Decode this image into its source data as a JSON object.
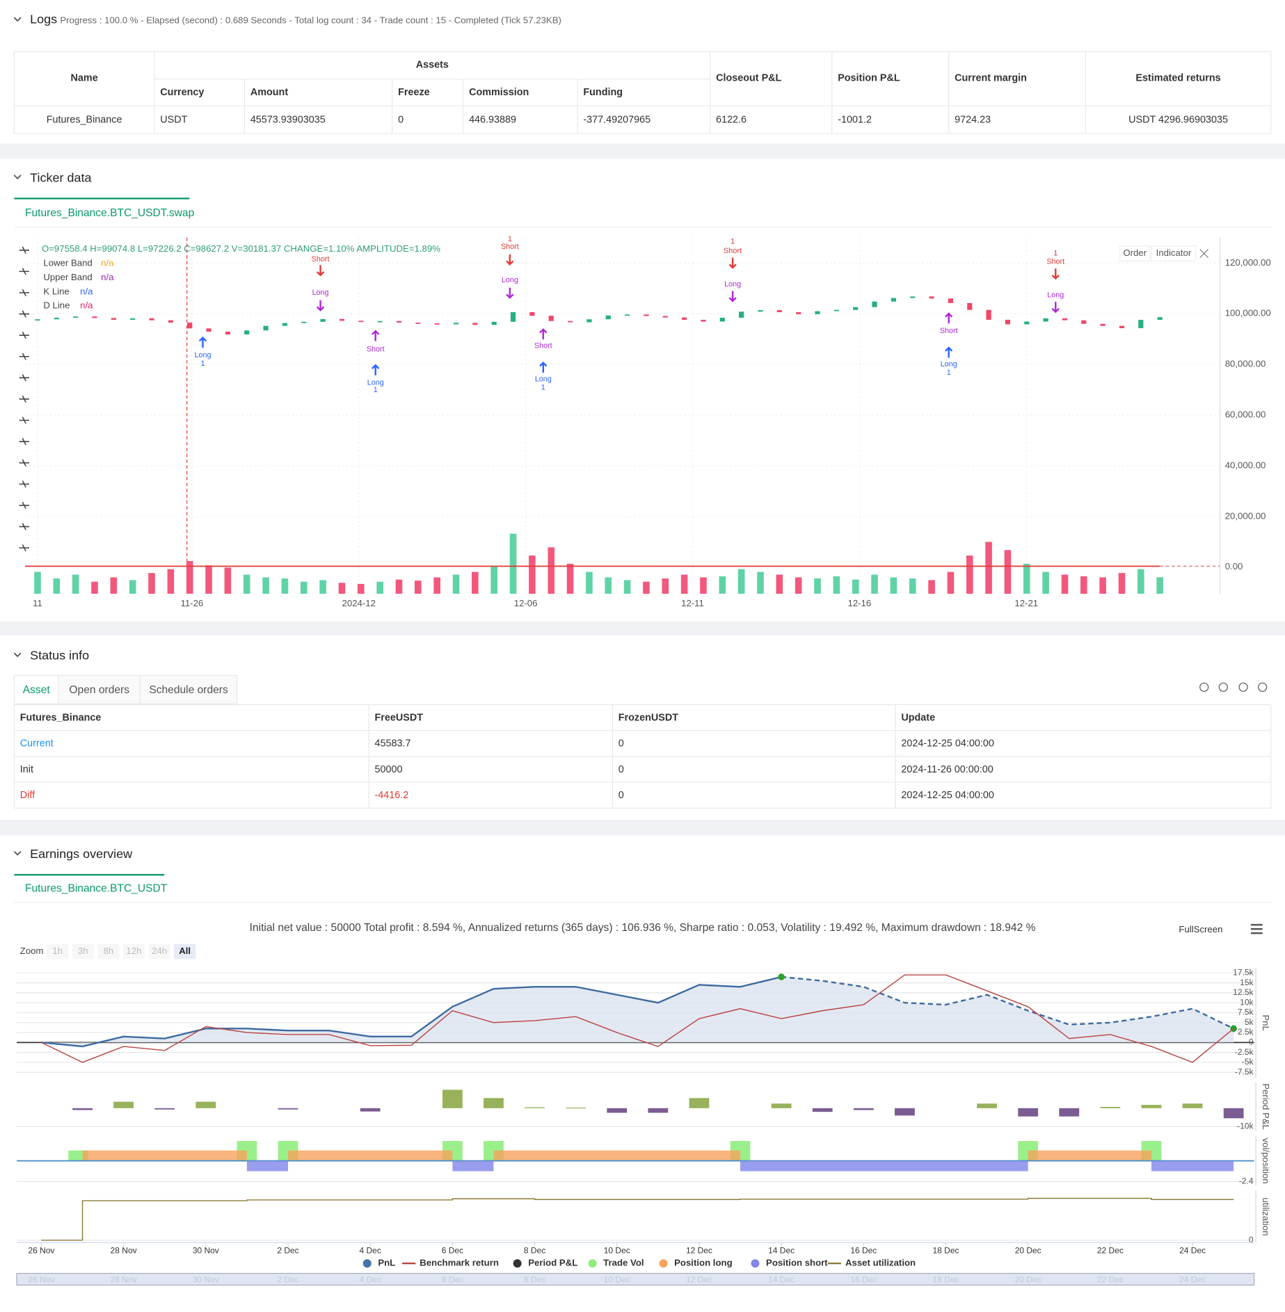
{
  "logs": {
    "title": "Logs",
    "status": "Progress : 100.0 % - Elapsed (second) : 0.689  Seconds - Total log count : 34 - Trade count : 15 - Completed (Tick 57.23KB)",
    "table": {
      "group_header": "Assets",
      "headers": [
        "Name",
        "Currency",
        "Amount",
        "Freeze",
        "Commission",
        "Funding",
        "Closeout P&L",
        "Position P&L",
        "Current margin",
        "Estimated returns"
      ],
      "rows": [
        [
          "Futures_Binance",
          "USDT",
          "45573.93903035",
          "0",
          "446.93889",
          "-377.49207965",
          "6122.6",
          "-1001.2",
          "9724.23",
          "USDT 4296.96903035"
        ]
      ]
    }
  },
  "ticker": {
    "title": "Ticker data",
    "tab": "Futures_Binance.BTC_USDT.swap",
    "ohlc": "O=97558.4 H=99074.8 L=97226.2 C=98627.2 V=30181.37 CHANGE=1.10% AMPLITUDE=1.89%",
    "legend": [
      {
        "name": "Lower Band",
        "value": "n/a",
        "color": "#f5a623"
      },
      {
        "name": "Upper Band",
        "value": "n/a",
        "color": "#9c27b0"
      },
      {
        "name": "K Line",
        "value": "n/a",
        "color": "#2962ff"
      },
      {
        "name": "D Line",
        "value": "n/a",
        "color": "#e91e63"
      }
    ],
    "buttons": [
      "Order",
      "Indicator"
    ],
    "signals": [
      {
        "text": "Long",
        "qty": "1"
      },
      {
        "text": "Short"
      },
      {
        "text": "Long"
      },
      {
        "text": "Short"
      },
      {
        "text": "Long",
        "qty": "1"
      },
      {
        "text": "Short",
        "qty": "1"
      },
      {
        "text": "Long"
      },
      {
        "text": "Short"
      },
      {
        "text": "Long",
        "qty": "1"
      },
      {
        "text": "Short",
        "qty": "1"
      },
      {
        "text": "Long"
      },
      {
        "text": "Short"
      },
      {
        "text": "Long",
        "qty": "1"
      },
      {
        "text": "Short",
        "qty": "1"
      },
      {
        "text": "Long"
      }
    ],
    "chart_data": {
      "type": "candlestick",
      "up_color": "#26b07e",
      "down_color": "#f0466a",
      "open": [
        97300,
        97800,
        98400,
        98900,
        98300,
        97600,
        98200,
        97400,
        96500,
        94200,
        92900,
        91800,
        93400,
        95200,
        96300,
        96800,
        97900,
        97200,
        96800,
        97100,
        96500,
        96200,
        95800,
        96400,
        95600,
        96800,
        100600,
        99200,
        97100,
        96600,
        97800,
        99300,
        99700,
        99100,
        98500,
        97600,
        96900,
        98400,
        100800,
        101400,
        100600,
        99800,
        101000,
        101500,
        102600,
        104800,
        106200,
        106800,
        106000,
        104200,
        101500,
        97600,
        95800,
        96900,
        98200,
        97400,
        96000,
        95200,
        94300,
        97558.4
      ],
      "close": [
        97800,
        98400,
        98900,
        98300,
        97600,
        98200,
        97400,
        96500,
        94200,
        92900,
        91800,
        93400,
        95200,
        96300,
        96800,
        97900,
        97200,
        96800,
        97100,
        96500,
        96200,
        95800,
        96400,
        95600,
        96800,
        100600,
        99200,
        97100,
        96600,
        97800,
        99300,
        99700,
        99100,
        98500,
        97600,
        96900,
        98400,
        100800,
        101400,
        100600,
        99800,
        101000,
        101500,
        102600,
        104800,
        106200,
        106800,
        106000,
        104200,
        101500,
        97600,
        95800,
        96900,
        98200,
        97400,
        96000,
        95200,
        94300,
        97558.4,
        98627.2
      ],
      "volume": [
        40000,
        28000,
        35000,
        22000,
        30000,
        25000,
        38000,
        45000,
        60000,
        52000,
        48000,
        35000,
        30000,
        28000,
        22000,
        25000,
        20000,
        18000,
        22000,
        26000,
        24000,
        30000,
        35000,
        40000,
        50000,
        110000,
        70000,
        85000,
        55000,
        40000,
        30000,
        25000,
        22000,
        28000,
        35000,
        30000,
        32000,
        45000,
        40000,
        35000,
        30000,
        28000,
        32000,
        26000,
        35000,
        30000,
        28000,
        25000,
        40000,
        70000,
        95000,
        80000,
        55000,
        40000,
        35000,
        32000,
        30000,
        38000,
        45000,
        30181.37
      ],
      "ylim": [
        -10500,
        130000
      ],
      "yticks": [
        {
          "value": 0,
          "label": "0.00"
        },
        {
          "value": 20000,
          "label": "20,000.00"
        },
        {
          "value": 40000,
          "label": "40,000.00"
        },
        {
          "value": 60000,
          "label": "60,000.00"
        },
        {
          "value": 80000,
          "label": "80,000.00"
        },
        {
          "value": 100000,
          "label": "100,000.00"
        },
        {
          "value": 120000,
          "label": "120,000.00"
        }
      ],
      "xtick_labels": [
        "11",
        "11-26",
        "2024-12",
        "12-06",
        "12-11",
        "12-16",
        "12-21"
      ]
    }
  },
  "status": {
    "title": "Status info",
    "tabs": [
      "Asset",
      "Open orders",
      "Schedule orders"
    ],
    "headers": [
      "Futures_Binance",
      "FreeUSDT",
      "FrozenUSDT",
      "Update"
    ],
    "rows": [
      [
        "Current",
        "45583.7",
        "0",
        "2024-12-25 04:00:00"
      ],
      [
        "Init",
        "50000",
        "0",
        "2024-11-26 00:00:00"
      ],
      [
        "Diff",
        "-4416.2",
        "0",
        "2024-12-25 04:00:00"
      ]
    ]
  },
  "earnings": {
    "title": "Earnings overview",
    "tab": "Futures_Binance.BTC_USDT",
    "summary": "Initial net value : 50000 Total profit : 8.594 %, Annualized returns (365 days) : 106.936 %, Sharpe ratio : 0.053, Volatility : 19.492 %, Maximum drawdown : 18.942 %",
    "zoom": "Zoom",
    "zoom_buttons": [
      "1h",
      "3h",
      "8h",
      "12h",
      "24h",
      "All"
    ],
    "fullscreen": "FullScreen",
    "chart_data": {
      "type": "multi-panel",
      "xlim": [
        -0.6,
        29.5
      ],
      "xticks": [
        {
          "value": 0,
          "label": "26 Nov"
        },
        {
          "value": 2,
          "label": "28 Nov"
        },
        {
          "value": 4,
          "label": "30 Nov"
        },
        {
          "value": 6,
          "label": "2 Dec"
        },
        {
          "value": 8,
          "label": "4 Dec"
        },
        {
          "value": 10,
          "label": "6 Dec"
        },
        {
          "value": 12,
          "label": "8 Dec"
        },
        {
          "value": 14,
          "label": "10 Dec"
        },
        {
          "value": 16,
          "label": "12 Dec"
        },
        {
          "value": 18,
          "label": "14 Dec"
        },
        {
          "value": 20,
          "label": "16 Dec"
        },
        {
          "value": 22,
          "label": "18 Dec"
        },
        {
          "value": 24,
          "label": "20 Dec"
        },
        {
          "value": 26,
          "label": "22 Dec"
        },
        {
          "value": 28,
          "label": "24 Dec"
        }
      ],
      "panels": [
        {
          "title": "PnL",
          "ylim": [
            -9000,
            18900
          ],
          "yticks": [
            {
              "value": 17500,
              "label": "17.5k"
            },
            {
              "value": 15000,
              "label": "15k"
            },
            {
              "value": 12500,
              "label": "12.5k"
            },
            {
              "value": 10000,
              "label": "10k"
            },
            {
              "value": 7500,
              "label": "7.5k"
            },
            {
              "value": 5000,
              "label": "5k"
            },
            {
              "value": 2500,
              "label": "2.5k"
            },
            0,
            {
              "value": -2500,
              "label": "-2.5k"
            },
            {
              "value": -5000,
              "label": "-5k"
            },
            {
              "value": -7500,
              "label": "-7.5k"
            }
          ]
        },
        {
          "title": "Period P&L",
          "ylim": [
            -12300,
            14000
          ],
          "yticks": [
            {
              "value": -10000,
              "label": "-10k"
            }
          ]
        },
        {
          "title": "vol/position",
          "ylim": [
            -2.9,
            2.9
          ],
          "yticks": [
            -2.4
          ]
        },
        {
          "title": "utilization",
          "ylim": [
            -0.06,
            1.25
          ],
          "yticks": [
            0
          ]
        }
      ],
      "series": [
        {
          "name": "PnL",
          "kind": "area",
          "panel": 0,
          "color": "#3d6aa0",
          "dash_from_index": 18,
          "x": [
            0,
            1,
            2,
            3,
            4,
            5,
            6,
            7,
            8,
            9,
            10,
            11,
            12,
            13,
            14,
            15,
            16,
            17,
            18,
            19,
            20,
            21,
            22,
            23,
            24,
            25,
            26,
            27,
            28,
            29
          ],
          "values": [
            0,
            -1000,
            1500,
            1000,
            3500,
            3500,
            3000,
            3000,
            1500,
            1500,
            9000,
            13500,
            14000,
            14000,
            12000,
            10000,
            14500,
            14000,
            16500,
            15500,
            14000,
            10000,
            9500,
            12000,
            8000,
            4500,
            5000,
            6500,
            8500,
            3500
          ]
        },
        {
          "name": "Benchmark return",
          "kind": "line",
          "panel": 0,
          "color": "#b84444",
          "x": [
            0,
            1,
            2,
            3,
            4,
            5,
            6,
            7,
            8,
            9,
            10,
            11,
            12,
            13,
            14,
            15,
            16,
            17,
            18,
            19,
            20,
            21,
            22,
            23,
            24,
            25,
            26,
            27,
            28,
            29
          ],
          "values": [
            0,
            -5000,
            -1000,
            -2000,
            4000,
            2500,
            2000,
            2000,
            -800,
            -700,
            8000,
            5000,
            5500,
            6500,
            2500,
            -1000,
            6000,
            8500,
            6000,
            8000,
            9500,
            17000,
            17000,
            13000,
            9000,
            1000,
            2000,
            -1000,
            -5000,
            3500
          ]
        },
        {
          "name": "Period P&L",
          "kind": "bar",
          "panel": 1,
          "color": "#333333",
          "positive_color": "#97b25a",
          "negative_color": "#7a5c92",
          "x": [
            1,
            2,
            3,
            4,
            6,
            8,
            10,
            11,
            12,
            13,
            14,
            15,
            16,
            18,
            19,
            20,
            21,
            23,
            24,
            25,
            26,
            27,
            28,
            29
          ],
          "values": [
            -1000,
            3500,
            -700,
            3500,
            -700,
            -1800,
            10000,
            5500,
            500,
            300,
            -2500,
            -2500,
            5500,
            2500,
            -2000,
            -1000,
            -4000,
            2500,
            -4500,
            -4500,
            700,
            1800,
            2500,
            -5500
          ]
        },
        {
          "name": "Trade Vol",
          "kind": "bar",
          "panel": 2,
          "color": "#90ed7d",
          "x": [
            0.9,
            5,
            6,
            10,
            11,
            17,
            24,
            27
          ],
          "values": [
            1.2,
            2.3,
            2.3,
            2.3,
            2.3,
            2.3,
            2.3,
            2.3
          ]
        },
        {
          "name": "Position long",
          "kind": "span",
          "panel": 2,
          "color": "#f7a35c",
          "x_start": [
            1,
            6,
            11,
            24
          ],
          "x_end": [
            5,
            10,
            17,
            27
          ],
          "values": [
            1.2,
            1.2,
            1.2,
            1.2
          ]
        },
        {
          "name": "Position short",
          "kind": "span",
          "panel": 2,
          "color": "#8085e9",
          "x_start": [
            5,
            10,
            17,
            27
          ],
          "x_end": [
            6,
            11,
            24,
            29
          ],
          "values": [
            -1.2,
            -1.2,
            -1.2,
            -1.2
          ]
        },
        {
          "name": "Asset utilization",
          "kind": "step",
          "panel": 3,
          "color": "#8d7a3a",
          "x": [
            0,
            1,
            5,
            10,
            12,
            17,
            24,
            27,
            29
          ],
          "values": [
            0,
            1,
            1.02,
            1.05,
            1.03,
            1.04,
            1.06,
            1.03,
            1.03
          ]
        }
      ]
    }
  }
}
